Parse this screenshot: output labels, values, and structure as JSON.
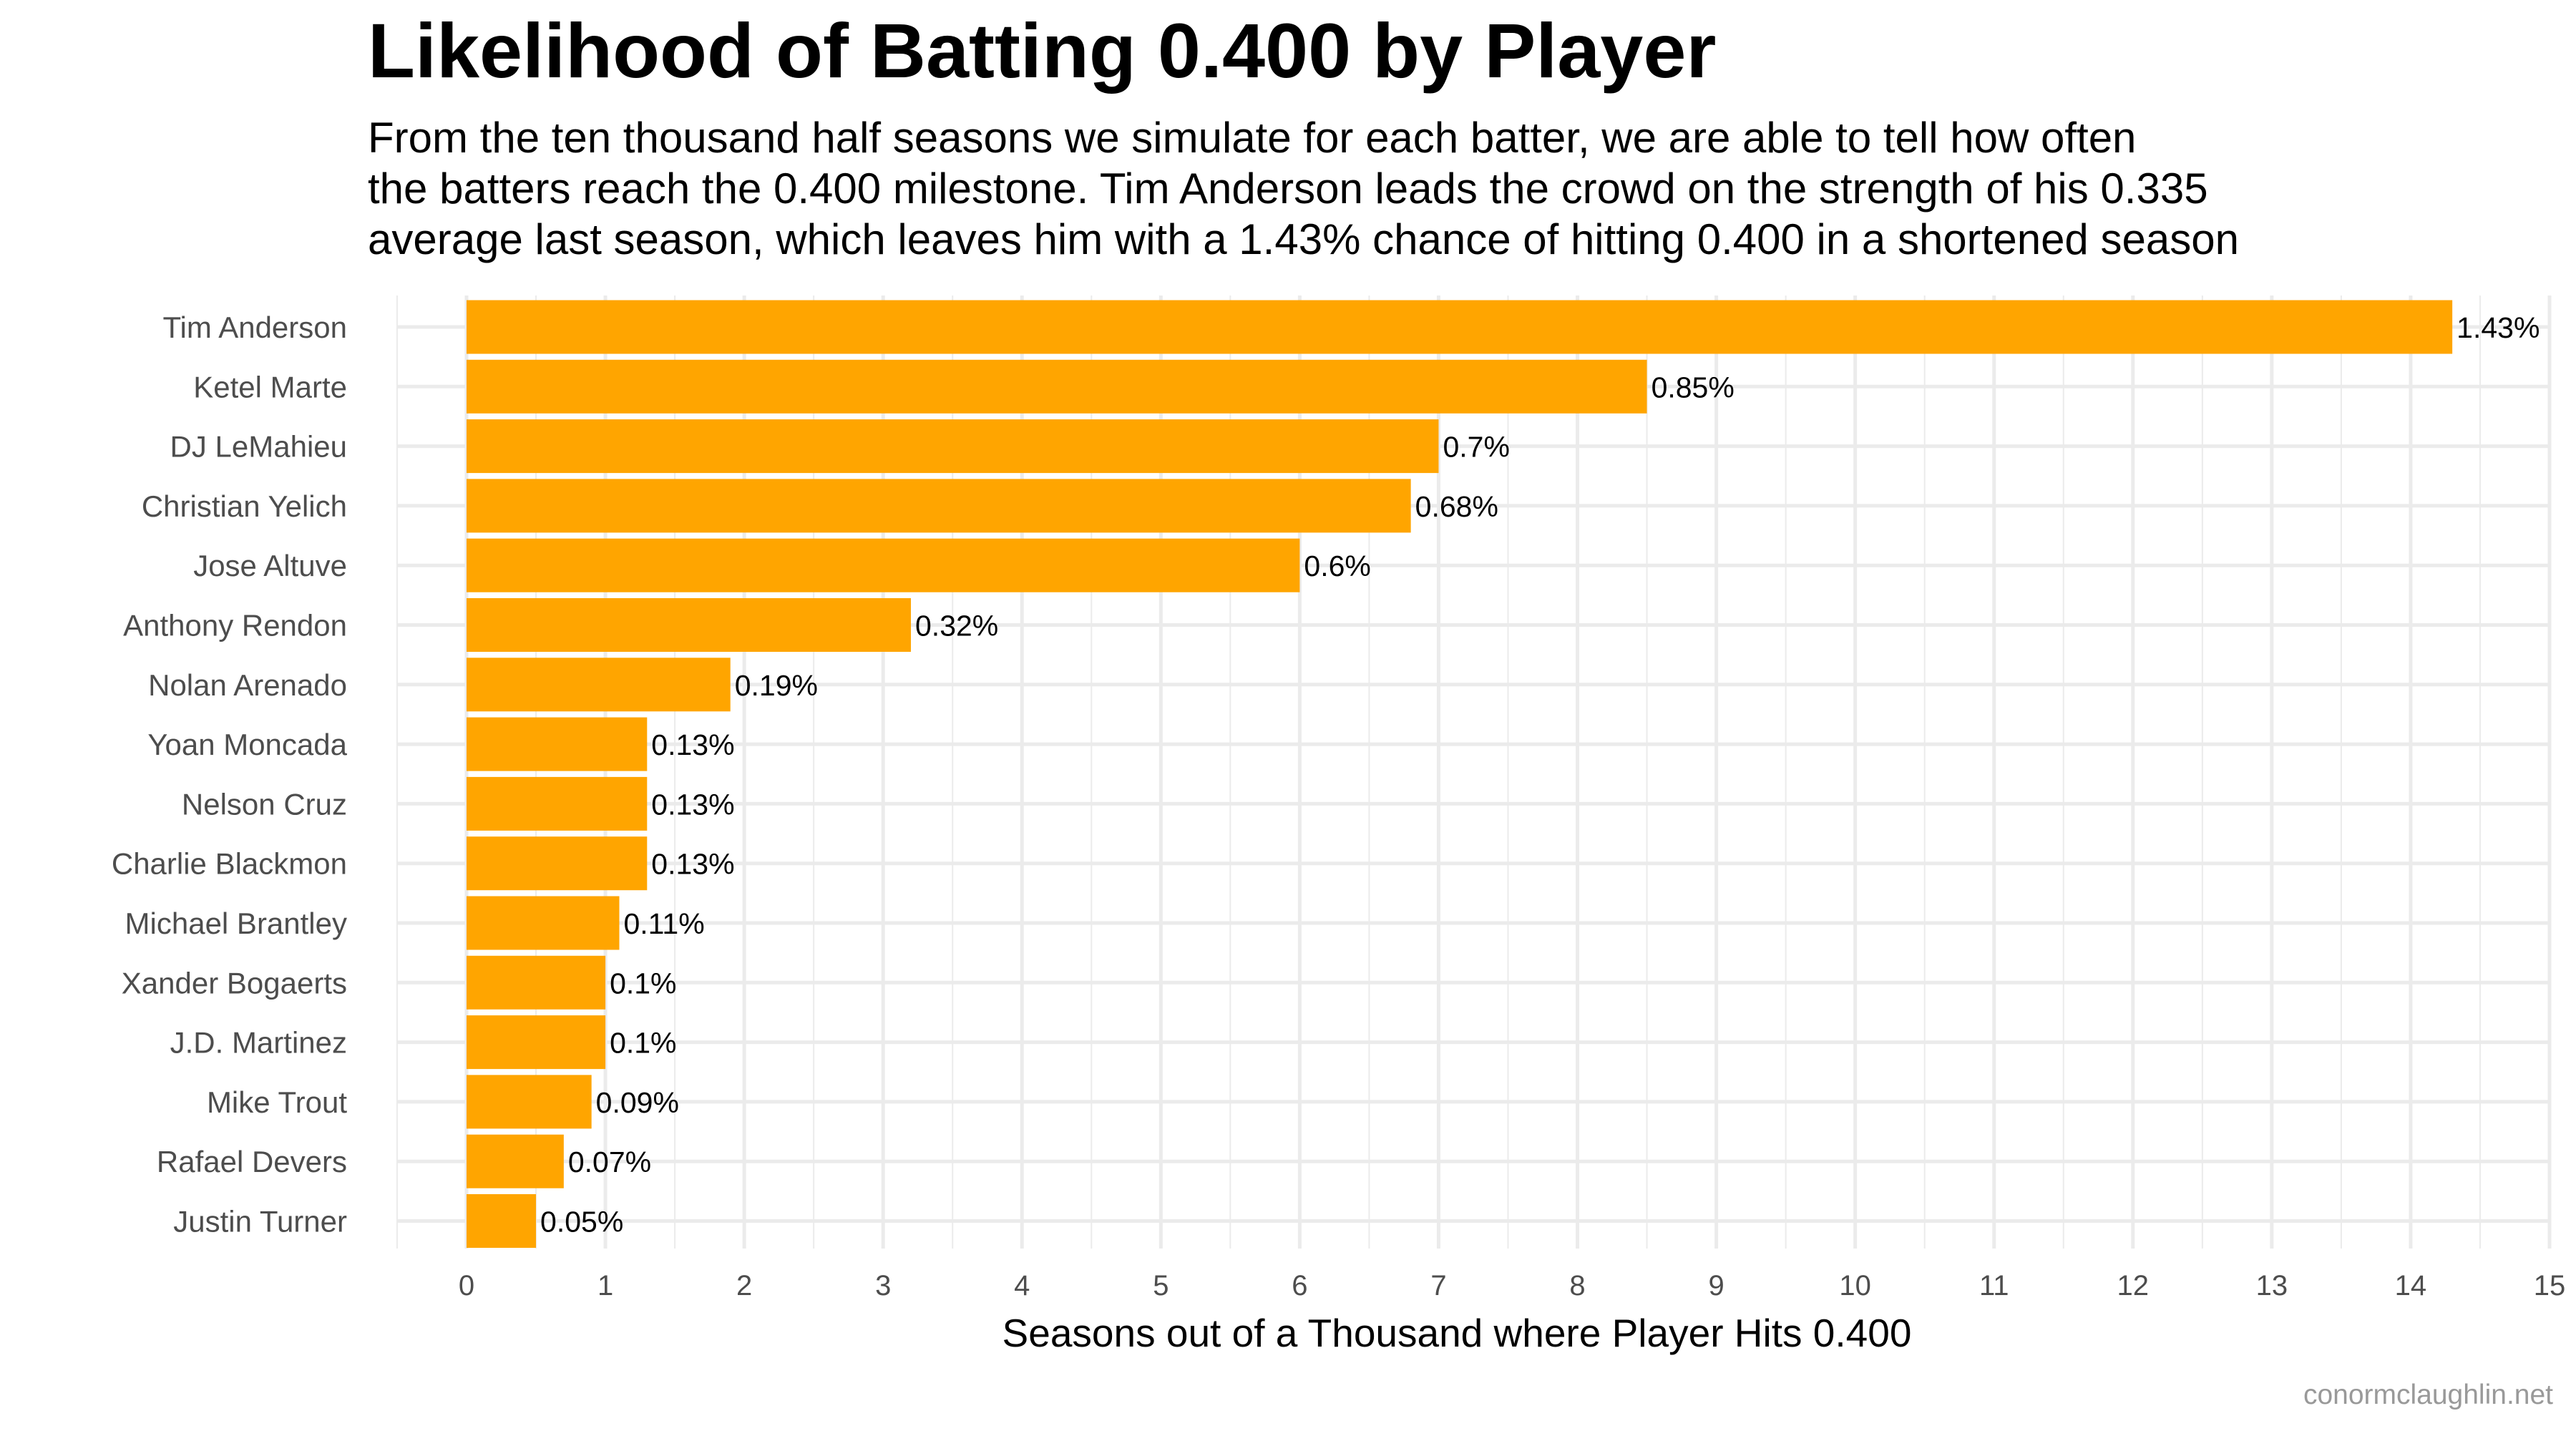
{
  "chart_data": {
    "type": "bar",
    "orientation": "horizontal",
    "title": "Likelihood of Batting 0.400 by Player",
    "subtitle": [
      "From the ten thousand half seasons we simulate for each batter, we are able to tell how often",
      "the batters reach the 0.400 milestone. Tim Anderson leads the crowd on the strength of his 0.335",
      "average last season, which leaves him with a 1.43% chance of hitting 0.400 in a shortened season"
    ],
    "xlabel": "Seasons out of a Thousand where Player Hits 0.400",
    "ylabel": "",
    "caption": "conormclaughlin.net",
    "xlim": [
      0,
      15
    ],
    "xticks": [
      "0",
      "1",
      "2",
      "3",
      "4",
      "5",
      "6",
      "7",
      "8",
      "9",
      "10",
      "11",
      "12",
      "13",
      "14",
      "15"
    ],
    "grid": true,
    "bar_color": "#FFA500",
    "categories": [
      "Tim Anderson",
      "Ketel Marte",
      "DJ LeMahieu",
      "Christian Yelich",
      "Jose Altuve",
      "Anthony Rendon",
      "Nolan Arenado",
      "Yoan Moncada",
      "Nelson Cruz",
      "Charlie Blackmon",
      "Michael Brantley",
      "Xander Bogaerts",
      "J.D. Martinez",
      "Mike Trout",
      "Rafael Devers",
      "Justin Turner"
    ],
    "values": [
      14.3,
      8.5,
      7.0,
      6.8,
      6.0,
      3.2,
      1.9,
      1.3,
      1.3,
      1.3,
      1.1,
      1.0,
      1.0,
      0.9,
      0.7,
      0.5
    ],
    "data_labels": [
      "1.43%",
      "0.85%",
      "0.7%",
      "0.68%",
      "0.6%",
      "0.32%",
      "0.19%",
      "0.13%",
      "0.13%",
      "0.13%",
      "0.11%",
      "0.1%",
      "0.1%",
      "0.09%",
      "0.07%",
      "0.05%"
    ]
  }
}
